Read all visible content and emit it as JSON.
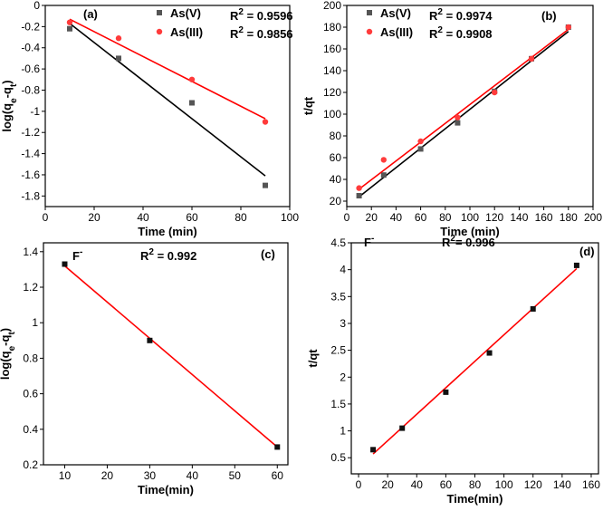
{
  "chart_data": [
    {
      "panel": "(a)",
      "type": "scatter",
      "xlabel": "Time (min)",
      "ylabel_parts": [
        "log(q",
        "e",
        "-q",
        "t",
        ")"
      ],
      "xlim": [
        0,
        100
      ],
      "ylim": [
        -1.9,
        0
      ],
      "xticks": [
        0,
        20,
        40,
        60,
        80,
        100
      ],
      "yticks": [
        -1.8,
        -1.6,
        -1.4,
        -1.2,
        -1,
        -0.8,
        -0.6,
        -0.4,
        -0.2,
        0
      ],
      "xtick_labels": [
        "0",
        "20",
        "40",
        "60",
        "80",
        "100"
      ],
      "ytick_labels": [
        "-1.8",
        "-1.6",
        "-1.4",
        "-1.2",
        "-1",
        "-0.8",
        "-0.6",
        "-0.4",
        "-0.2",
        "0"
      ],
      "series": [
        {
          "name": "As(V)",
          "marker": "square",
          "color": "#555555",
          "line_color": "#000000",
          "x": [
            10,
            30,
            60,
            90
          ],
          "y": [
            -0.22,
            -0.5,
            -0.92,
            -1.7
          ],
          "fit": [
            [
              10,
              -0.17
            ],
            [
              90,
              -1.61
            ]
          ],
          "r2_label": "R",
          "r2_sup": "2",
          "r2_value": " = 0.9596"
        },
        {
          "name": "As(III)",
          "marker": "circle",
          "color": "#ff3b3b",
          "line_color": "#ff0000",
          "x": [
            10,
            30,
            60,
            90
          ],
          "y": [
            -0.16,
            -0.31,
            -0.7,
            -1.1
          ],
          "fit": [
            [
              10,
              -0.13
            ],
            [
              90,
              -1.07
            ]
          ],
          "r2_label": "R",
          "r2_sup": "2",
          "r2_value": " = 0.9856"
        }
      ]
    },
    {
      "panel": "(b)",
      "type": "scatter",
      "xlabel": "Time (min)",
      "ylabel_parts": [
        "t/qt"
      ],
      "xlim": [
        0,
        200
      ],
      "ylim": [
        15,
        200
      ],
      "xticks": [
        0,
        20,
        40,
        60,
        80,
        100,
        120,
        140,
        160,
        180,
        200
      ],
      "yticks": [
        20,
        40,
        60,
        80,
        100,
        120,
        140,
        160,
        180,
        200
      ],
      "xtick_labels": [
        "0",
        "20",
        "40",
        "60",
        "80",
        "100",
        "120",
        "140",
        "160",
        "180",
        "200"
      ],
      "ytick_labels": [
        "20",
        "40",
        "60",
        "80",
        "100",
        "120",
        "140",
        "160",
        "180",
        "200"
      ],
      "series": [
        {
          "name": "As(V)",
          "marker": "square",
          "color": "#555555",
          "line_color": "#000000",
          "x": [
            10,
            30,
            60,
            90,
            120,
            150,
            180
          ],
          "y": [
            25,
            44,
            68,
            92,
            121,
            151,
            180
          ],
          "fit": [
            [
              10,
              24
            ],
            [
              180,
              176
            ]
          ],
          "r2_label": "R",
          "r2_sup": "2",
          "r2_value": " = 0.9974"
        },
        {
          "name": "As(III)",
          "marker": "circle",
          "color": "#ff3b3b",
          "line_color": "#ff0000",
          "x": [
            10,
            30,
            60,
            90,
            120,
            150,
            180
          ],
          "y": [
            32,
            58,
            75,
            97,
            120,
            151,
            180
          ],
          "fit": [
            [
              10,
              31
            ],
            [
              180,
              178
            ]
          ],
          "r2_label": "R",
          "r2_sup": "2",
          "r2_value": " = 0.9908"
        }
      ]
    },
    {
      "panel": "(c)",
      "type": "scatter",
      "xlabel": "Time(min)",
      "ylabel_parts": [
        "log(q",
        "e",
        "-q",
        "t",
        ")"
      ],
      "xlim": [
        5,
        62.5
      ],
      "ylim": [
        0.2,
        1.45
      ],
      "xticks": [
        10,
        20,
        30,
        40,
        50,
        60
      ],
      "yticks": [
        0.2,
        0.4,
        0.6,
        0.8,
        1,
        1.2,
        1.4
      ],
      "xtick_labels": [
        "10",
        "20",
        "30",
        "40",
        "50",
        "60"
      ],
      "ytick_labels": [
        "0.2",
        "0.4",
        "0.6",
        "0.8",
        "1",
        "1.2",
        "1.4"
      ],
      "species": "F",
      "species_sup": "-",
      "series": [
        {
          "name": "F-",
          "marker": "square",
          "color": "#111111",
          "line_color": "#ff0000",
          "x": [
            10,
            30,
            60
          ],
          "y": [
            1.33,
            0.9,
            0.3
          ],
          "fit": [
            [
              10,
              1.32
            ],
            [
              60,
              0.3
            ]
          ],
          "r2_label": "R",
          "r2_sup": "2",
          "r2_value": " = 0.992"
        }
      ]
    },
    {
      "panel": "(d)",
      "type": "scatter",
      "xlabel": "Time(min)",
      "ylabel_parts": [
        "t/qt"
      ],
      "xlim": [
        -5,
        165
      ],
      "ylim": [
        0.2,
        4.5
      ],
      "xticks": [
        0,
        20,
        40,
        60,
        80,
        100,
        120,
        140,
        160
      ],
      "yticks": [
        0.5,
        1,
        1.5,
        2,
        2.5,
        3,
        3.5,
        4,
        4.5
      ],
      "xtick_labels": [
        "0",
        "20",
        "40",
        "60",
        "80",
        "100",
        "120",
        "140",
        "160"
      ],
      "ytick_labels": [
        "0.5",
        "1",
        "1.5",
        "2",
        "2.5",
        "3",
        "3.5",
        "4",
        "4.5"
      ],
      "species": "F",
      "species_sup": "-",
      "series": [
        {
          "name": "F-",
          "marker": "square",
          "color": "#111111",
          "line_color": "#ff0000",
          "x": [
            10,
            30,
            60,
            90,
            120,
            150
          ],
          "y": [
            0.65,
            1.05,
            1.72,
            2.45,
            3.27,
            4.08
          ],
          "fit": [
            [
              10,
              0.57
            ],
            [
              150,
              4.02
            ]
          ],
          "r2_label": "R",
          "r2_sup": "2",
          "r2_value": "= 0.996"
        }
      ]
    }
  ]
}
